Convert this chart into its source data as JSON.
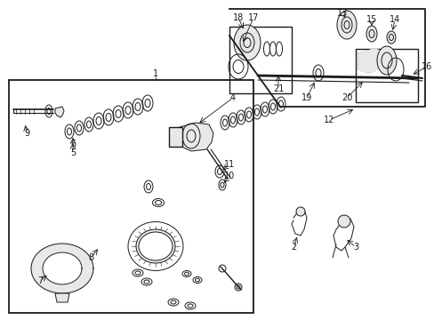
{
  "bg_color": "#ffffff",
  "line_color": "#1a1a1a",
  "gray_fill": "#c8c8c8",
  "light_gray": "#e8e8e8",
  "figsize": [
    4.89,
    3.6
  ],
  "dpi": 100
}
